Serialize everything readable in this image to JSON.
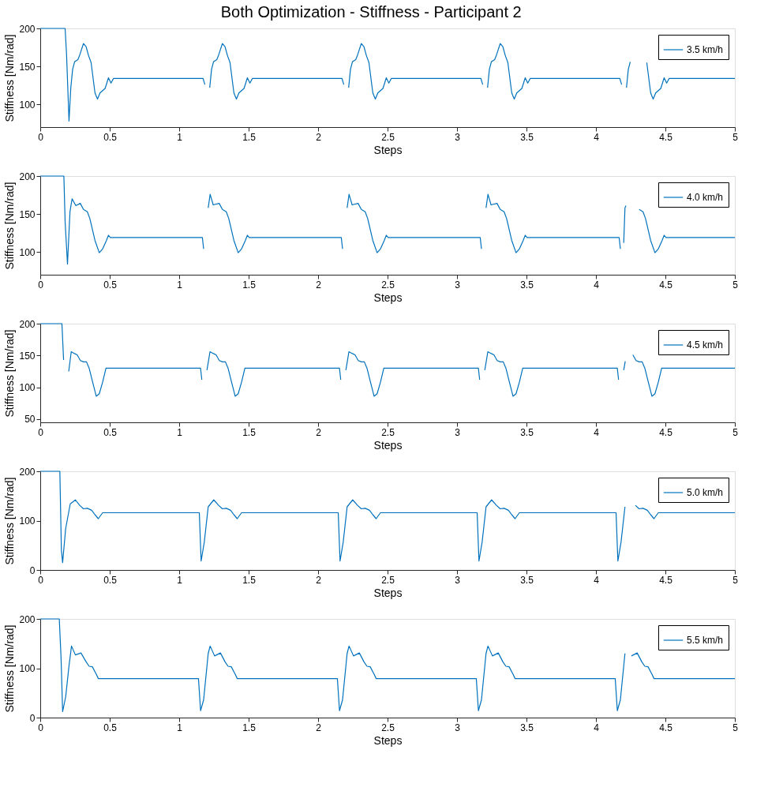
{
  "chart_data": [
    {
      "type": "line",
      "title": "Both Optimization - Stiffness - Participant 2",
      "xlabel": "Steps",
      "ylabel": "Stiffness [Nm/rad]",
      "xlim": [
        0,
        5
      ],
      "xticks": [
        0,
        0.5,
        1,
        1.5,
        2,
        2.5,
        3,
        3.5,
        4,
        4.5,
        5
      ],
      "ylim": [
        70,
        200
      ],
      "yticks": [
        100,
        150,
        200
      ],
      "legend": "top right",
      "grid": false,
      "series": [
        {
          "name": "3.5 km/h",
          "color": "#0072bd",
          "x": [
            0,
            0.179,
            0.189,
            0.207,
            0.22,
            0.233,
            0.247,
            0.271,
            0.284,
            0.311,
            0.33,
            0.348,
            0.366,
            0.394,
            0.412,
            0.43,
            0.467,
            0.491,
            0.509,
            0.527,
            1.172,
            1.185,
            1.2,
            1.22,
            1.233,
            1.247,
            1.271,
            1.284,
            1.311,
            1.33,
            1.348,
            1.366,
            1.394,
            1.412,
            1.43,
            1.467,
            1.491,
            1.509,
            1.527,
            2.172,
            2.185,
            2.2,
            2.22,
            2.233,
            2.247,
            2.271,
            2.284,
            2.311,
            2.33,
            2.348,
            2.366,
            2.394,
            2.412,
            2.43,
            2.467,
            2.491,
            2.509,
            2.527,
            3.172,
            3.185,
            3.2,
            3.22,
            3.233,
            3.247,
            3.271,
            3.284,
            3.311,
            3.33,
            3.348,
            3.366,
            3.394,
            3.412,
            3.43,
            3.467,
            3.491,
            3.509,
            3.527,
            4.172,
            4.185,
            4.2,
            4.22,
            4.233,
            4.247,
            4.271,
            4.284,
            4.311,
            4.33,
            4.348,
            4.366,
            4.394,
            4.412,
            4.43,
            4.467,
            4.491,
            4.509,
            4.527,
            5
          ],
          "values": [
            200,
            200,
            167,
            78,
            122,
            146,
            156,
            159,
            165,
            180,
            176,
            164,
            155,
            115,
            107,
            115,
            121,
            135,
            128,
            134,
            134,
            126,
            null,
            122,
            146,
            156,
            159,
            165,
            180,
            176,
            164,
            155,
            115,
            107,
            115,
            121,
            135,
            128,
            134,
            134,
            126,
            null,
            122,
            146,
            156,
            159,
            165,
            180,
            176,
            164,
            155,
            115,
            107,
            115,
            121,
            135,
            128,
            134,
            134,
            126,
            null,
            122,
            146,
            156,
            159,
            165,
            180,
            176,
            164,
            155,
            115,
            107,
            115,
            121,
            135,
            128,
            134,
            134,
            126,
            null,
            122,
            146,
            156,
            null,
            null,
            null,
            null,
            null,
            155,
            115,
            107,
            115,
            121,
            135,
            128,
            134,
            134
          ]
        }
      ]
    },
    {
      "type": "line",
      "xlabel": "Steps",
      "ylabel": "Stiffness [Nm/rad]",
      "xlim": [
        0,
        5
      ],
      "xticks": [
        0,
        0.5,
        1,
        1.5,
        2,
        2.5,
        3,
        3.5,
        4,
        4.5,
        5
      ],
      "ylim": [
        70,
        200
      ],
      "yticks": [
        100,
        150,
        200
      ],
      "legend": "top right",
      "grid": false,
      "series": [
        {
          "name": "4.0 km/h",
          "color": "#0072bd",
          "x": [
            0,
            0.17,
            0.179,
            0.196,
            0.214,
            0.229,
            0.256,
            0.288,
            0.311,
            0.339,
            0.357,
            0.394,
            0.425,
            0.449,
            0.476,
            0.491,
            0.504,
            1.167,
            1.176,
            1.19,
            1.209,
            1.223,
            1.245,
            1.288,
            1.311,
            1.339,
            1.357,
            1.394,
            1.425,
            1.449,
            1.476,
            1.491,
            1.504,
            2.167,
            2.176,
            2.19,
            2.209,
            2.223,
            2.245,
            2.288,
            2.311,
            2.339,
            2.357,
            2.394,
            2.425,
            2.449,
            2.476,
            2.491,
            2.504,
            3.167,
            3.176,
            3.19,
            3.209,
            3.223,
            3.245,
            3.288,
            3.311,
            3.339,
            3.357,
            3.394,
            3.425,
            3.449,
            3.476,
            3.491,
            3.504,
            4.167,
            4.176,
            4.19,
            4.2,
            4.209,
            4.216,
            4.223,
            4.245,
            4.288,
            4.311,
            4.339,
            4.357,
            4.394,
            4.425,
            4.449,
            4.476,
            4.491,
            4.504,
            5
          ],
          "values": [
            200,
            200,
            140,
            84,
            153,
            170,
            161,
            164,
            156,
            153,
            144,
            115,
            99,
            104,
            115,
            122,
            119,
            119,
            104,
            null,
            158,
            176,
            162,
            164,
            156,
            153,
            144,
            115,
            99,
            104,
            115,
            122,
            119,
            119,
            104,
            null,
            158,
            176,
            162,
            164,
            156,
            153,
            144,
            115,
            99,
            104,
            115,
            122,
            119,
            119,
            104,
            null,
            158,
            176,
            162,
            164,
            156,
            153,
            144,
            115,
            99,
            104,
            115,
            122,
            119,
            119,
            104,
            null,
            112,
            158,
            161,
            null,
            null,
            null,
            156,
            153,
            144,
            115,
            99,
            104,
            115,
            122,
            119,
            119
          ]
        }
      ]
    },
    {
      "type": "line",
      "xlabel": "Steps",
      "ylabel": "Stiffness [Nm/rad]",
      "xlim": [
        0,
        5
      ],
      "xticks": [
        0,
        0.5,
        1,
        1.5,
        2,
        2.5,
        3,
        3.5,
        4,
        4.5,
        5
      ],
      "ylim": [
        45,
        200
      ],
      "yticks": [
        50,
        100,
        150,
        200
      ],
      "legend": "top right",
      "grid": false,
      "series": [
        {
          "name": "4.5 km/h",
          "color": "#0072bd",
          "x": [
            0,
            0.156,
            0.168,
            0.183,
            0.205,
            0.223,
            0.247,
            0.266,
            0.289,
            0.311,
            0.333,
            0.352,
            0.375,
            0.403,
            0.425,
            0.449,
            0.473,
            1.154,
            1.163,
            1.178,
            1.2,
            1.222,
            1.247,
            1.266,
            1.289,
            1.311,
            1.333,
            1.352,
            1.375,
            1.403,
            1.425,
            1.449,
            1.473,
            2.154,
            2.163,
            2.178,
            2.2,
            2.222,
            2.247,
            2.266,
            2.289,
            2.311,
            2.333,
            2.352,
            2.375,
            2.403,
            2.425,
            2.449,
            2.473,
            3.154,
            3.163,
            3.178,
            3.2,
            3.222,
            3.247,
            3.266,
            3.289,
            3.311,
            3.333,
            3.352,
            3.375,
            3.403,
            3.425,
            3.449,
            3.473,
            4.154,
            4.163,
            4.178,
            4.2,
            4.211,
            4.222,
            4.247,
            4.266,
            4.289,
            4.311,
            4.333,
            4.352,
            4.375,
            4.403,
            4.425,
            4.449,
            4.473,
            5
          ],
          "values": [
            200,
            200,
            143,
            null,
            125,
            156,
            153,
            151,
            142,
            140,
            140,
            130,
            110,
            86,
            90,
            108,
            130,
            130,
            112,
            null,
            127,
            156,
            153,
            151,
            142,
            140,
            140,
            130,
            110,
            86,
            90,
            108,
            130,
            130,
            112,
            null,
            127,
            156,
            153,
            151,
            142,
            140,
            140,
            130,
            110,
            86,
            90,
            108,
            130,
            130,
            112,
            null,
            127,
            156,
            153,
            151,
            142,
            140,
            140,
            130,
            110,
            86,
            90,
            108,
            130,
            130,
            112,
            null,
            127,
            141,
            null,
            null,
            151,
            142,
            140,
            140,
            130,
            110,
            86,
            90,
            108,
            130,
            130
          ]
        }
      ]
    },
    {
      "type": "line",
      "xlabel": "Steps",
      "ylabel": "Stiffness [Nm/rad]",
      "xlim": [
        0,
        5
      ],
      "xticks": [
        0,
        0.5,
        1,
        1.5,
        2,
        2.5,
        3,
        3.5,
        4,
        4.5,
        5
      ],
      "ylim": [
        0,
        200
      ],
      "yticks": [
        0,
        100,
        200
      ],
      "legend": "top right",
      "grid": false,
      "series": [
        {
          "name": "5.0 km/h",
          "color": "#0072bd",
          "x": [
            0,
            0.141,
            0.152,
            0.161,
            0.183,
            0.216,
            0.253,
            0.284,
            0.311,
            0.339,
            0.37,
            0.394,
            0.418,
            0.449,
            1.145,
            1.158,
            1.181,
            1.209,
            1.249,
            1.284,
            1.311,
            1.339,
            1.37,
            1.394,
            1.418,
            1.449,
            2.145,
            2.158,
            2.181,
            2.209,
            2.249,
            2.284,
            2.311,
            2.339,
            2.37,
            2.394,
            2.418,
            2.449,
            3.145,
            3.158,
            3.181,
            3.209,
            3.249,
            3.284,
            3.311,
            3.339,
            3.37,
            3.394,
            3.418,
            3.449,
            4.145,
            4.158,
            4.181,
            4.209,
            4.249,
            4.284,
            4.311,
            4.339,
            4.37,
            4.394,
            4.418,
            4.449,
            5
          ],
          "values": [
            200,
            200,
            41,
            15,
            84,
            134,
            142,
            131,
            124,
            125,
            121,
            112,
            104,
            116,
            116,
            18,
            57,
            128,
            142,
            131,
            124,
            125,
            121,
            112,
            104,
            116,
            116,
            18,
            57,
            128,
            142,
            131,
            124,
            125,
            121,
            112,
            104,
            116,
            116,
            18,
            57,
            128,
            142,
            131,
            124,
            125,
            121,
            112,
            104,
            116,
            116,
            18,
            57,
            128,
            null,
            131,
            124,
            125,
            121,
            112,
            104,
            116,
            116
          ]
        }
      ]
    },
    {
      "type": "line",
      "xlabel": "Steps",
      "ylabel": "Stiffness [Nm/rad]",
      "xlim": [
        0,
        5
      ],
      "xticks": [
        0,
        0.5,
        1,
        1.5,
        2,
        2.5,
        3,
        3.5,
        4,
        4.5,
        5
      ],
      "ylim": [
        0,
        200
      ],
      "yticks": [
        0,
        100,
        200
      ],
      "legend": "top right",
      "grid": false,
      "series": [
        {
          "name": "5.5 km/h",
          "color": "#0072bd",
          "x": [
            0,
            0.137,
            0.15,
            0.161,
            0.183,
            0.207,
            0.225,
            0.253,
            0.293,
            0.33,
            0.352,
            0.375,
            0.403,
            0.418,
            1.139,
            1.154,
            1.176,
            1.209,
            1.223,
            1.255,
            1.297,
            1.33,
            1.352,
            1.375,
            1.403,
            1.418,
            2.139,
            2.154,
            2.176,
            2.209,
            2.223,
            2.255,
            2.297,
            2.33,
            2.352,
            2.375,
            2.403,
            2.418,
            3.139,
            3.154,
            3.176,
            3.209,
            3.223,
            3.255,
            3.297,
            3.33,
            3.352,
            3.375,
            3.403,
            3.418,
            4.139,
            4.154,
            4.176,
            4.209,
            4.223,
            4.255,
            4.297,
            4.33,
            4.352,
            4.375,
            4.403,
            4.418,
            5
          ],
          "values": [
            200,
            200,
            119,
            12,
            42,
            105,
            145,
            127,
            131,
            113,
            104,
            103,
            88,
            79,
            79,
            14,
            36,
            130,
            145,
            125,
            131,
            113,
            104,
            103,
            88,
            79,
            79,
            14,
            36,
            130,
            145,
            125,
            131,
            113,
            104,
            103,
            88,
            79,
            79,
            14,
            36,
            130,
            145,
            125,
            131,
            113,
            104,
            103,
            88,
            79,
            79,
            14,
            36,
            130,
            null,
            125,
            131,
            113,
            104,
            103,
            88,
            79,
            79
          ]
        }
      ]
    }
  ]
}
